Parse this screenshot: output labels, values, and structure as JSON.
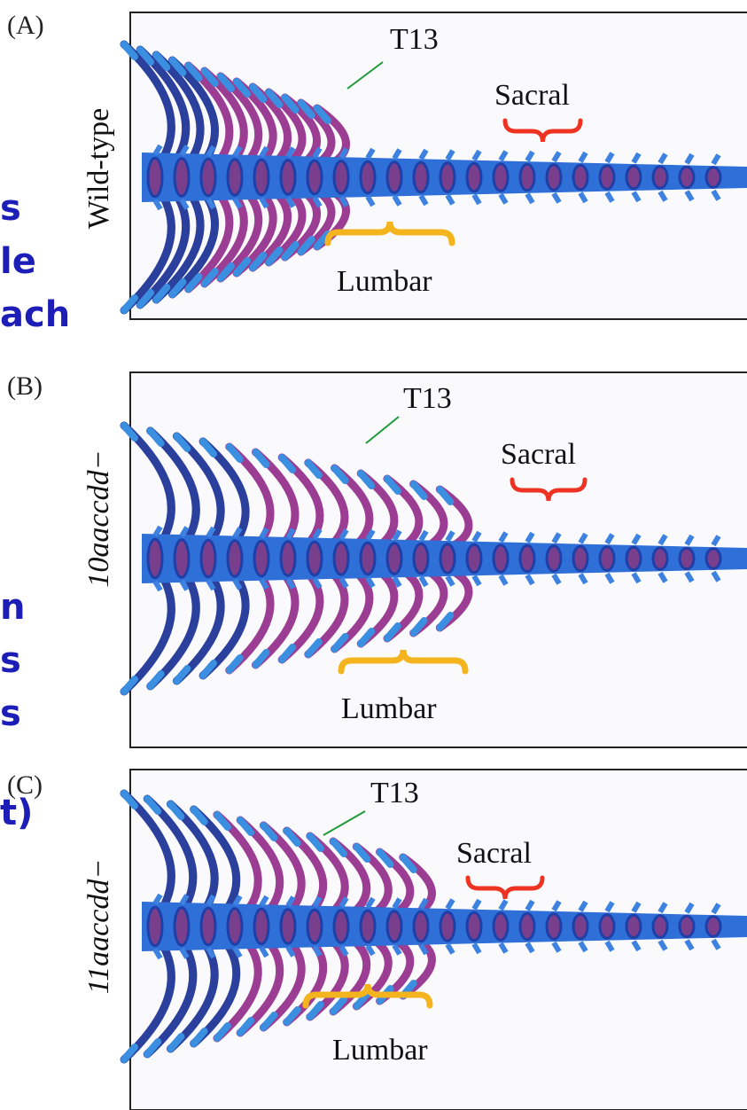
{
  "side_text": [
    "s",
    "le",
    "ach",
    "n",
    "s",
    "s",
    "t)"
  ],
  "panels": [
    {
      "label": "(A)",
      "genotype": "Wild-type",
      "t13": "T13",
      "sacral": "Sacral",
      "lumbar": "Lumbar"
    },
    {
      "label": "(B)",
      "genotype": "10aaccdd−",
      "t13": "T13",
      "sacral": "Sacral",
      "lumbar": "Lumbar"
    },
    {
      "label": "(C)",
      "genotype": "11aaccdd−",
      "t13": "T13",
      "sacral": "Sacral",
      "lumbar": "Lumbar"
    }
  ]
}
